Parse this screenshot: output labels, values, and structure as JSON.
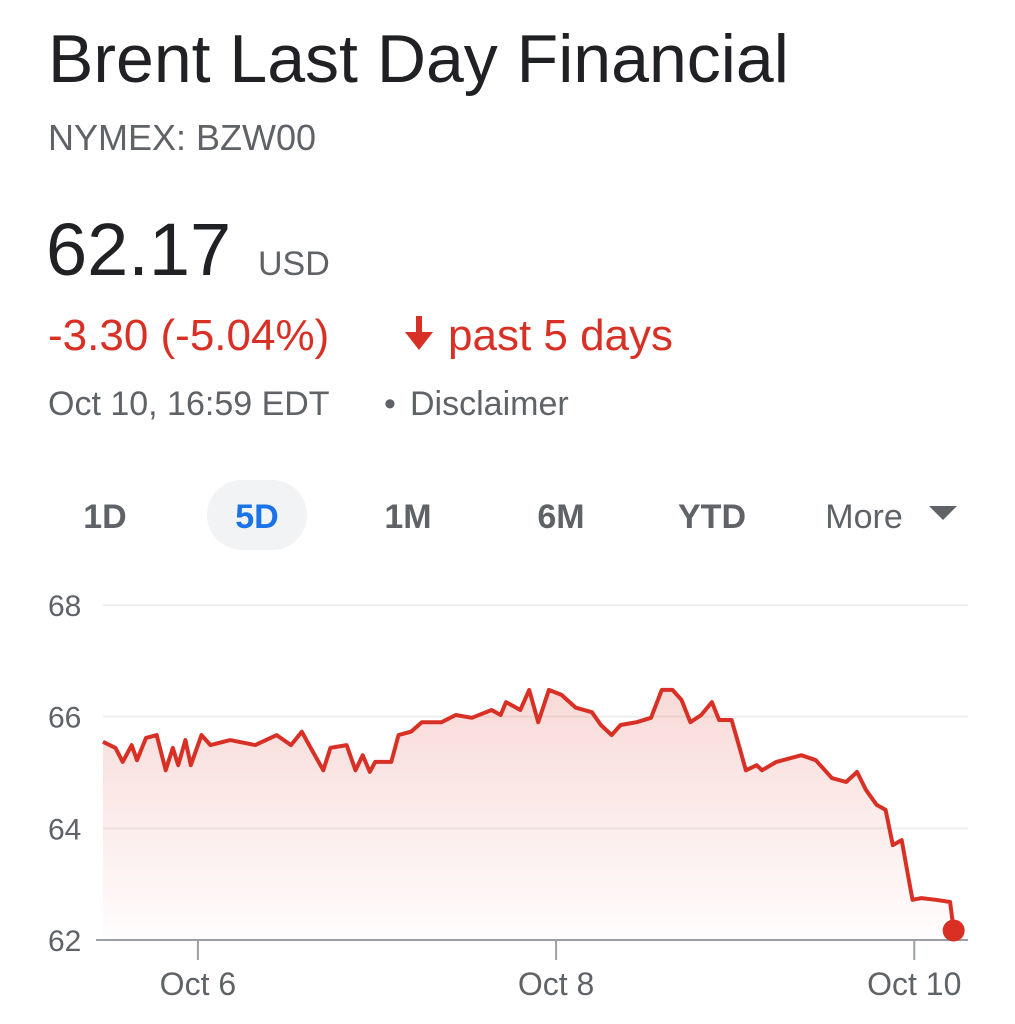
{
  "header": {
    "title": "Brent Last Day Financial",
    "subtitle": "NYMEX: BZW00"
  },
  "quote": {
    "price": "62.17",
    "currency": "USD",
    "change": "-3.30 (-5.04%)",
    "period": "past 5 days",
    "timestamp": "Oct 10, 16:59 EDT",
    "disclaimer": "Disclaimer"
  },
  "tabs": {
    "items": [
      "1D",
      "5D",
      "1M",
      "6M",
      "YTD",
      "More"
    ],
    "active": 1
  },
  "chart_data": {
    "type": "line",
    "color": "#d93025",
    "area": true,
    "grid": true,
    "x": [
      5.47,
      5.54,
      5.58,
      5.63,
      5.66,
      5.71,
      5.77,
      5.82,
      5.86,
      5.89,
      5.93,
      5.96,
      6.02,
      6.07,
      6.18,
      6.32,
      6.44,
      6.52,
      6.58,
      6.63,
      6.7,
      6.74,
      6.83,
      6.88,
      6.92,
      6.96,
      6.99,
      7.08,
      7.12,
      7.19,
      7.25,
      7.36,
      7.44,
      7.53,
      7.64,
      7.69,
      7.72,
      7.8,
      7.85,
      7.9,
      7.96,
      8.03,
      8.11,
      8.2,
      8.25,
      8.31,
      8.36,
      8.45,
      8.53,
      8.59,
      8.65,
      8.7,
      8.75,
      8.81,
      8.87,
      8.91,
      8.98,
      9.02,
      9.06,
      9.12,
      9.15,
      9.23,
      9.37,
      9.45,
      9.54,
      9.62,
      9.68,
      9.73,
      9.79,
      9.84,
      9.88,
      9.93,
      9.96,
      9.99,
      10.04,
      10.12,
      10.2,
      10.22
    ],
    "values": [
      65.55,
      65.44,
      65.19,
      65.49,
      65.22,
      65.62,
      65.67,
      65.04,
      65.44,
      65.13,
      65.58,
      65.13,
      65.67,
      65.49,
      65.58,
      65.49,
      65.67,
      65.49,
      65.73,
      65.44,
      65.04,
      65.44,
      65.49,
      65.04,
      65.31,
      65.01,
      65.19,
      65.19,
      65.67,
      65.73,
      65.9,
      65.9,
      66.03,
      65.98,
      66.12,
      66.03,
      66.26,
      66.12,
      66.48,
      65.9,
      66.48,
      66.39,
      66.16,
      66.08,
      65.85,
      65.67,
      65.85,
      65.9,
      65.98,
      66.48,
      66.48,
      66.3,
      65.9,
      66.03,
      66.26,
      65.94,
      65.94,
      65.49,
      65.04,
      65.13,
      65.04,
      65.19,
      65.31,
      65.22,
      64.9,
      64.83,
      65.01,
      64.69,
      64.42,
      64.33,
      63.7,
      63.79,
      63.25,
      62.72,
      62.75,
      62.72,
      62.68,
      62.17
    ],
    "xlim": [
      5.47,
      10.3
    ],
    "xticks": [
      {
        "value": 6,
        "label": "Oct 6"
      },
      {
        "value": 8,
        "label": "Oct 8"
      },
      {
        "value": 10,
        "label": "Oct 10"
      }
    ],
    "ylim": [
      62,
      68
    ],
    "yticks": [
      62,
      64,
      66,
      68
    ]
  }
}
